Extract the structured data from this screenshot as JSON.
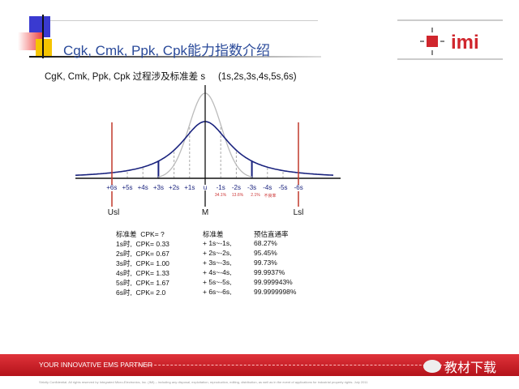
{
  "header": {
    "title": "Cgk, Cmk, Ppk, Cpk能力指数介绍",
    "logo_text": "IMI"
  },
  "subtitle": "CgK, Cmk, Ppk, Cpk 过程涉及标准差 s     (1s,2s,3s,4s,5s,6s)",
  "chart": {
    "ticks": [
      "+6s",
      "+5s",
      "+4s",
      "+3s",
      "+2s",
      "+1s",
      "u",
      "-1s",
      "-2s",
      "-3s",
      "-4s",
      "-5s",
      "-6s"
    ],
    "percent_labels": [
      "34.1%",
      "13.6%",
      "2.1%",
      "不良率"
    ],
    "limits": {
      "usl": "Usl",
      "mean": "M",
      "lsl": "Lsl"
    },
    "colors": {
      "curve": "#1a237e",
      "narrow_curve": "#bbbbbb",
      "limit": "#c0392b"
    }
  },
  "table": {
    "headers": [
      "标准差  CPK= ?",
      "标准差",
      "预估直通率"
    ],
    "rows": [
      [
        "1s时,  CPK= 0.33",
        "+ 1s~-1s,",
        "68.27%"
      ],
      [
        "2s时,  CPK= 0.67",
        "+ 2s~-2s,",
        "95.45%"
      ],
      [
        "3s时,  CPK= 1.00",
        "+ 3s~-3s,",
        "99.73%"
      ],
      [
        "4s时,  CPK= 1.33",
        "+ 4s~-4s,",
        "99.9937%"
      ],
      [
        "5s时,  CPK= 1.67",
        "+ 5s~-5s,",
        "99.999943%"
      ],
      [
        "6s时,  CPK= 2.0",
        "+ 6s~-6s,",
        "99.9999998%"
      ]
    ]
  },
  "footer": {
    "tagline": "YOUR INNOVATIVE EMS PARTNER",
    "watermark": "教材下载",
    "confidential": "Strictly Confidential. All rights reserved by Integrated Micro-Electronics, Inc. (IMI) – including any disposal, exploitation, reproduction, editing, distribution, as well as in the event of applications for industrial property rights. July 2011"
  }
}
